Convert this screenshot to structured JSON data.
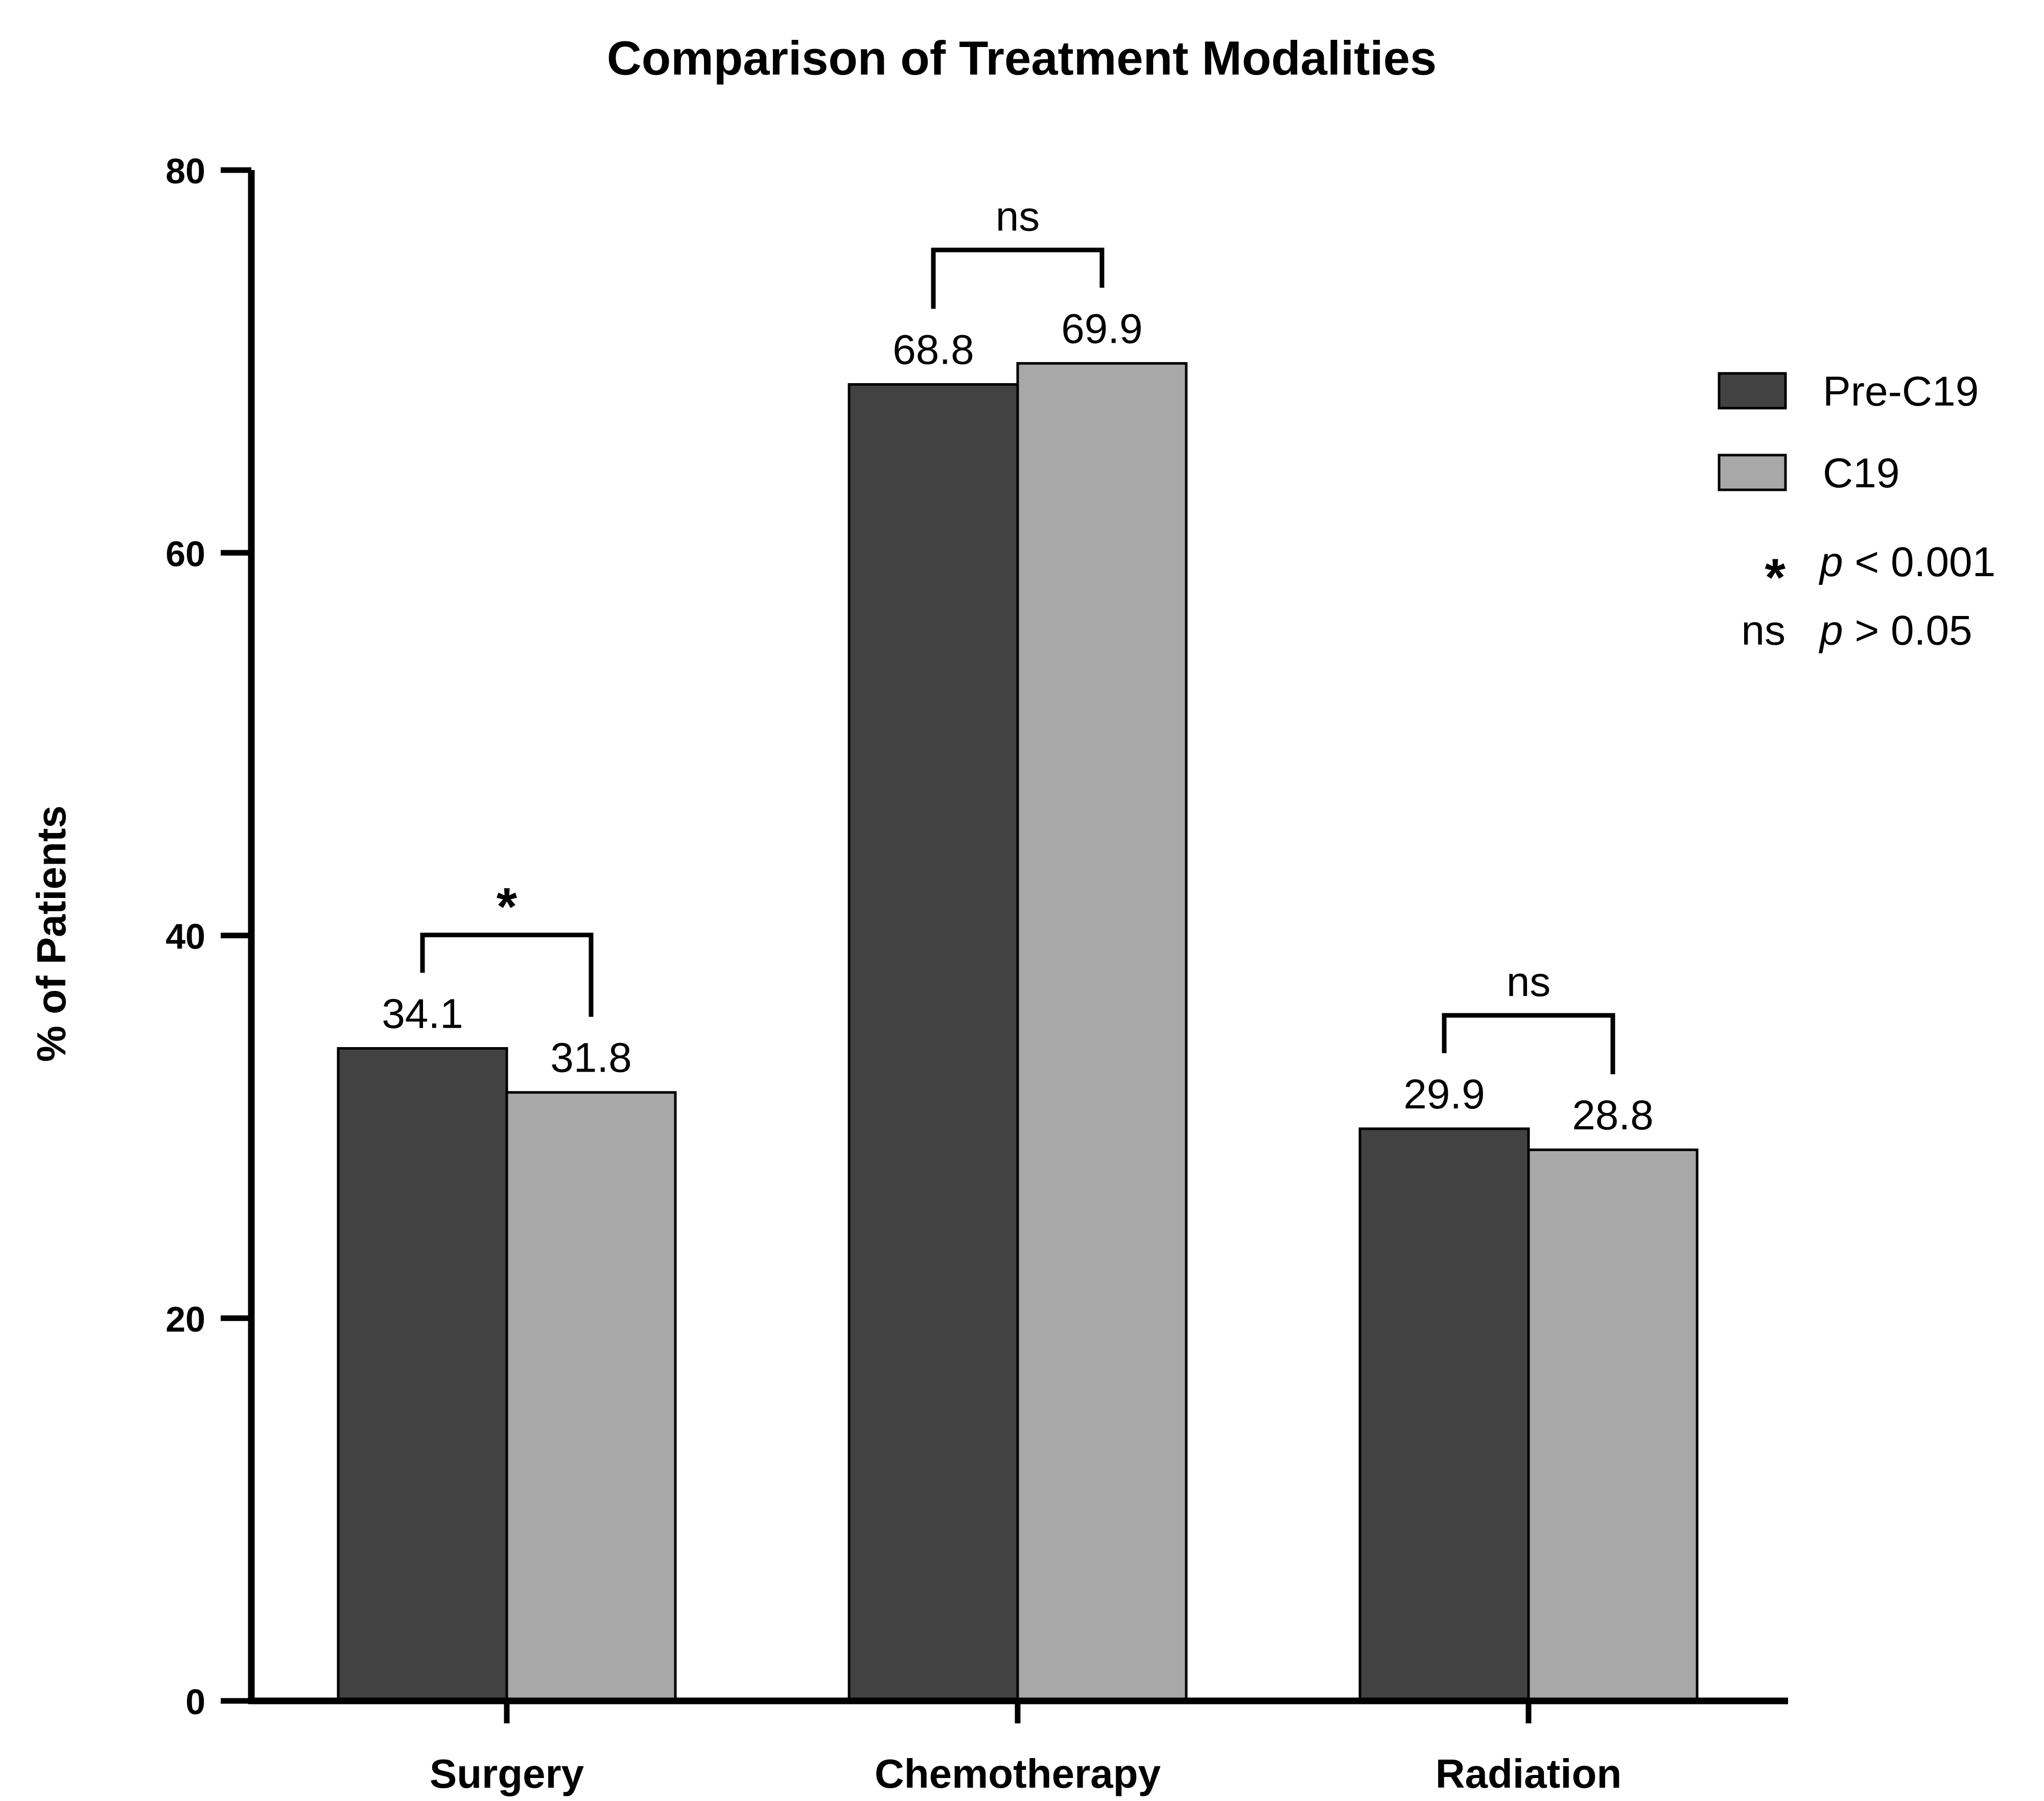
{
  "chart_data": {
    "type": "bar",
    "title": "Comparison of Treatment Modalities",
    "xlabel": "",
    "ylabel": "% of Patients",
    "ylim": [
      0,
      80
    ],
    "yticks": [
      "0",
      "20",
      "40",
      "60",
      "80"
    ],
    "categories": [
      "Surgery",
      "Chemotherapy",
      "Radiation"
    ],
    "series": [
      {
        "name": "Pre-C19",
        "color": "#424242",
        "values": [
          34.1,
          68.8,
          29.9
        ],
        "labels": [
          "34.1",
          "68.8",
          "29.9"
        ]
      },
      {
        "name": "C19",
        "color": "#a8a8a8",
        "values": [
          31.8,
          69.9,
          28.8
        ],
        "labels": [
          "31.8",
          "69.9",
          "28.8"
        ]
      }
    ],
    "significance": [
      "*",
      "ns",
      "ns"
    ],
    "legend_position": "top-right",
    "legend_notes": [
      {
        "symbol": "*",
        "p": "p",
        "text": " < 0.001"
      },
      {
        "symbol": "ns",
        "p": "p",
        "text": " > 0.05"
      }
    ],
    "grid": false
  }
}
